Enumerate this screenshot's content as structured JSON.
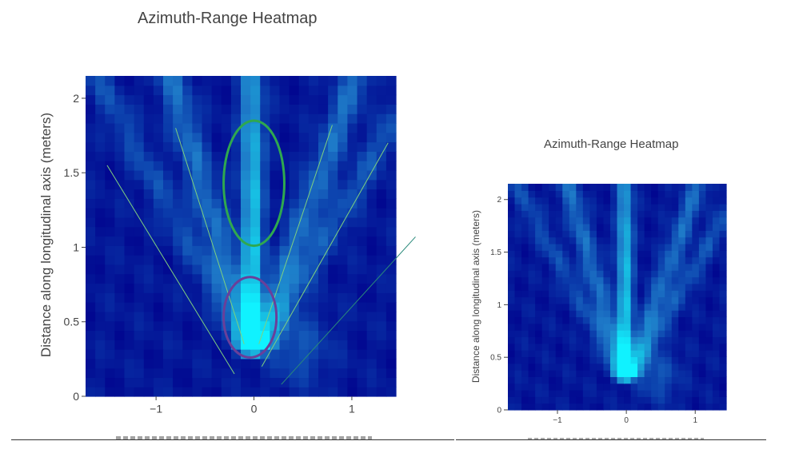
{
  "chart_data": [
    {
      "type": "heatmap",
      "title": "Azimuth-Range Heatmap",
      "xlabel": "",
      "ylabel": "Distance along longitudinal axis (meters)",
      "xlim": [
        -1.72,
        1.45
      ],
      "ylim": [
        0,
        2.15
      ],
      "x_ticks": [
        -1,
        0,
        1
      ],
      "x_tick_labels": [
        "−1",
        "0",
        "1"
      ],
      "y_ticks": [
        0,
        0.5,
        1,
        1.5,
        2
      ],
      "y_tick_labels": [
        "0",
        "0.5",
        "1",
        "1.5",
        "2"
      ],
      "colorscale": [
        "#00008c",
        "#0a3aaa",
        "#1e7ac8",
        "#18b6de",
        "#10f2ff"
      ],
      "annotations": {
        "lines": [
          {
            "x": [
              -1.5,
              -0.2
            ],
            "y": [
              1.55,
              0.15
            ],
            "color": "#7fd07f"
          },
          {
            "x": [
              -0.8,
              -0.1
            ],
            "y": [
              1.8,
              0.35
            ],
            "color": "#7fd07f"
          },
          {
            "x": [
              0.8,
              0.05
            ],
            "y": [
              1.82,
              0.35
            ],
            "color": "#7fd07f"
          },
          {
            "x": [
              1.37,
              0.08
            ],
            "y": [
              1.7,
              0.2
            ],
            "color": "#7fd07f"
          },
          {
            "x": [
              1.65,
              0.28
            ],
            "y": [
              1.07,
              0.08
            ],
            "color": "#2a8a7a"
          }
        ],
        "ellipses": [
          {
            "cx": 0.0,
            "cy": 1.43,
            "rx": 0.31,
            "ry": 0.42,
            "color": "#2fa84f"
          },
          {
            "cx": -0.04,
            "cy": 0.53,
            "rx": 0.27,
            "ry": 0.27,
            "color": "#6a3f9a"
          }
        ]
      }
    },
    {
      "type": "heatmap",
      "title": "Azimuth-Range Heatmap",
      "xlabel": "",
      "ylabel": "Distance along longitudinal axis (meters)",
      "xlim": [
        -1.72,
        1.45
      ],
      "ylim": [
        0,
        2.15
      ],
      "x_ticks": [
        -1,
        0,
        1
      ],
      "x_tick_labels": [
        "−1",
        "0",
        "1"
      ],
      "y_ticks": [
        0,
        0.5,
        1,
        1.5,
        2
      ],
      "y_tick_labels": [
        "0",
        "0.5",
        "1",
        "1.5",
        "2"
      ],
      "colorscale": [
        "#00008c",
        "#0a3aaa",
        "#1e7ac8",
        "#18b6de",
        "#10f2ff"
      ]
    }
  ]
}
